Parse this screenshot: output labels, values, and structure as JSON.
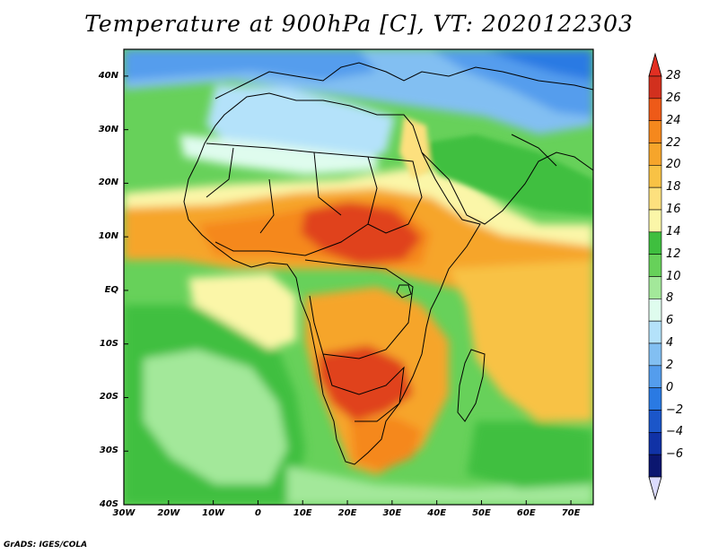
{
  "title": "Temperature at 900hPa [C], VT: 2020122303",
  "credit": "GrADS: IGES/COLA",
  "map": {
    "lon_range": [
      -30,
      75
    ],
    "lat_range": [
      -40,
      45
    ]
  },
  "axes": {
    "x_ticks": [
      {
        "value": -30,
        "label": "30W"
      },
      {
        "value": -20,
        "label": "20W"
      },
      {
        "value": -10,
        "label": "10W"
      },
      {
        "value": 0,
        "label": "0"
      },
      {
        "value": 10,
        "label": "10E"
      },
      {
        "value": 20,
        "label": "20E"
      },
      {
        "value": 30,
        "label": "30E"
      },
      {
        "value": 40,
        "label": "40E"
      },
      {
        "value": 50,
        "label": "50E"
      },
      {
        "value": 60,
        "label": "60E"
      },
      {
        "value": 70,
        "label": "70E"
      }
    ],
    "y_ticks": [
      {
        "value": 40,
        "label": "40N"
      },
      {
        "value": 30,
        "label": "30N"
      },
      {
        "value": 20,
        "label": "20N"
      },
      {
        "value": 10,
        "label": "10N"
      },
      {
        "value": 0,
        "label": "EQ"
      },
      {
        "value": -10,
        "label": "10S"
      },
      {
        "value": -20,
        "label": "20S"
      },
      {
        "value": -30,
        "label": "30S"
      },
      {
        "value": -40,
        "label": "40S"
      }
    ]
  },
  "colorbar": {
    "labels": [
      "28",
      "26",
      "24",
      "22",
      "20",
      "18",
      "16",
      "14",
      "12",
      "10",
      "8",
      "6",
      "4",
      "2",
      "0",
      "−2",
      "−4",
      "−6"
    ],
    "colors": [
      "#d2301e",
      "#ee5a18",
      "#f5881d",
      "#f6a52b",
      "#f8c245",
      "#fde07e",
      "#fbf6a8",
      "#3fbf3f",
      "#67d15a",
      "#a3e89a",
      "#dffcee",
      "#b4e2fa",
      "#82bff2",
      "#549ded",
      "#2a7ae3",
      "#1b56c9",
      "#1032a6",
      "#0b1670"
    ],
    "top_color": "#e22f22",
    "bottom_color": "#dcdcff"
  },
  "field_colors": {
    "hot": "#e0421e",
    "warm_orange": "#f5881d",
    "orange": "#f6a52b",
    "light_orange": "#f8c245",
    "yellow": "#fde07e",
    "pale_yellow": "#fbf6a8",
    "green": "#3fbf3f",
    "mid_green": "#67d15a",
    "light_green": "#a3e89a",
    "pale": "#dffcee",
    "light_blue": "#b4e2fa",
    "blue": "#82bff2",
    "mid_blue": "#549ded",
    "deep_blue": "#2a7ae3"
  }
}
